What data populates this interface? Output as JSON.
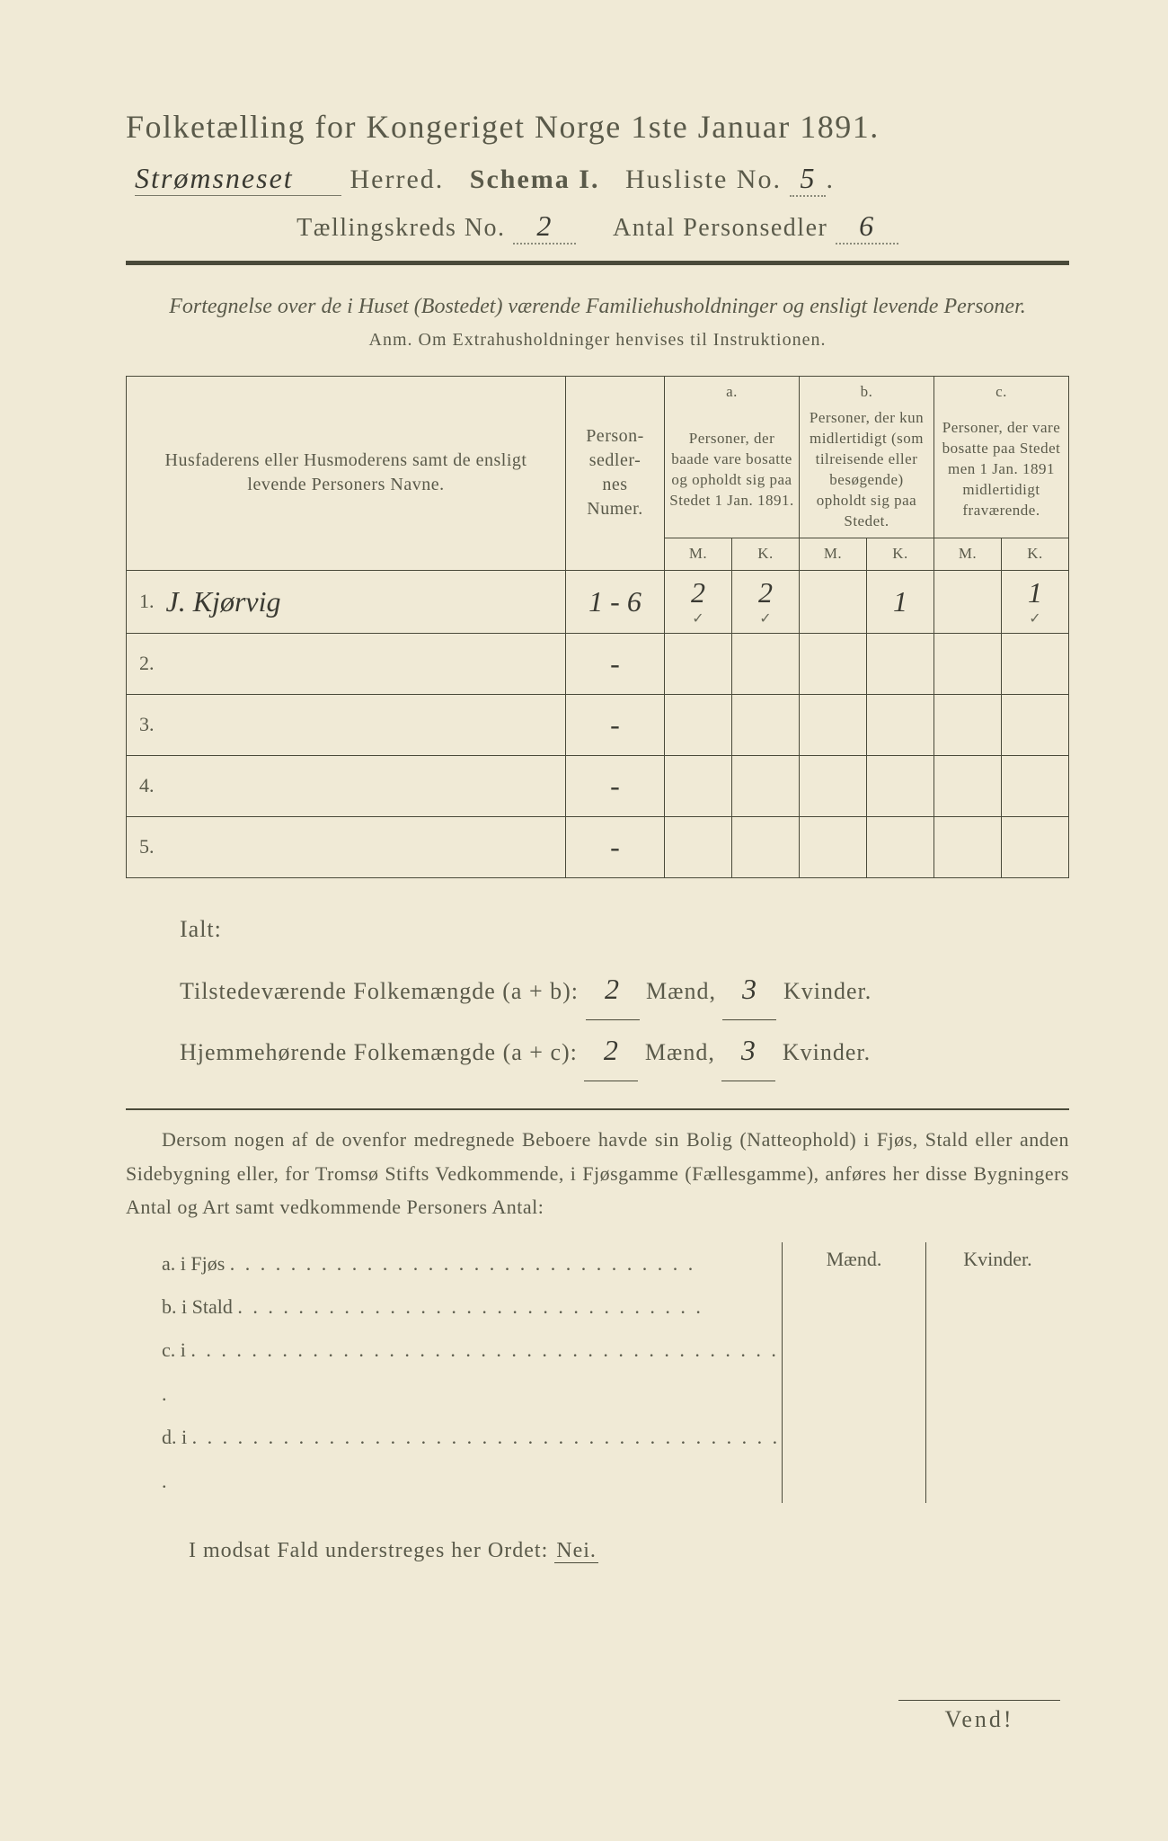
{
  "colors": {
    "paper": "#f0ead6",
    "ink": "#5a5a4a",
    "rule": "#4a4a3a",
    "handwriting": "#3a3a32",
    "background": "#2a2a2a"
  },
  "title": "Folketælling for Kongeriget Norge 1ste Januar 1891.",
  "line2": {
    "herred_hw": "Strømsneset",
    "herred_label": "Herred.",
    "schema_label": "Schema I.",
    "husliste_label": "Husliste No.",
    "husliste_no": "5"
  },
  "line3": {
    "kreds_label": "Tællingskreds No.",
    "kreds_no": "2",
    "antal_label": "Antal Personsedler",
    "antal_no": "6"
  },
  "subtitle": "Fortegnelse over de i Huset (Bostedet) værende Familiehusholdninger og ensligt levende Personer.",
  "anm": "Anm.  Om Extrahusholdninger henvises til Instruktionen.",
  "table": {
    "col1_header": "Husfaderens eller Husmoderens samt de ensligt levende Personers Navne.",
    "col2_header": "Person-sedler-nes Numer.",
    "group_a_letter": "a.",
    "group_a_header": "Personer, der baade vare bosatte og opholdt sig paa Stedet 1 Jan. 1891.",
    "group_b_letter": "b.",
    "group_b_header": "Personer, der kun midlertidigt (som tilreisende eller besøgende) opholdt sig paa Stedet.",
    "group_c_letter": "c.",
    "group_c_header": "Personer, der vare bosatte paa Stedet men 1 Jan. 1891 midlertidigt fraværende.",
    "m_label": "M.",
    "k_label": "K.",
    "rows": [
      {
        "n": "1.",
        "name_hw": "J. Kjørvig",
        "sedler": "1 - 6",
        "a_m": "2",
        "a_k": "2",
        "b_m": "",
        "b_k": "1",
        "c_m": "",
        "c_k": "1",
        "checks": true
      },
      {
        "n": "2.",
        "name_hw": "",
        "sedler": "-",
        "a_m": "",
        "a_k": "",
        "b_m": "",
        "b_k": "",
        "c_m": "",
        "c_k": ""
      },
      {
        "n": "3.",
        "name_hw": "",
        "sedler": "-",
        "a_m": "",
        "a_k": "",
        "b_m": "",
        "b_k": "",
        "c_m": "",
        "c_k": ""
      },
      {
        "n": "4.",
        "name_hw": "",
        "sedler": "-",
        "a_m": "",
        "a_k": "",
        "b_m": "",
        "b_k": "",
        "c_m": "",
        "c_k": ""
      },
      {
        "n": "5.",
        "name_hw": "",
        "sedler": "-",
        "a_m": "",
        "a_k": "",
        "b_m": "",
        "b_k": "",
        "c_m": "",
        "c_k": ""
      }
    ]
  },
  "ialt": {
    "label": "Ialt:",
    "line1_a": "Tilstedeværende Folkemængde (a + b):",
    "line2_a": "Hjemmehørende Folkemængde (a + c):",
    "maend_label": "Mænd,",
    "kvinder_label": "Kvinder.",
    "tilstede_m": "2",
    "tilstede_k": "3",
    "hjemme_m": "2",
    "hjemme_k": "3"
  },
  "para": "Dersom nogen af de ovenfor medregnede Beboere havde sin Bolig (Natteophold) i Fjøs, Stald eller anden Sidebygning eller, for Tromsø Stifts Vedkommende, i Fjøsgamme (Fællesgamme), anføres her disse Bygningers Antal og Art samt vedkommende Personers Antal:",
  "lower": {
    "maend": "Mænd.",
    "kvinder": "Kvinder.",
    "rows": [
      {
        "label": "a.  i      Fjøs",
        "dots": ". . . . . . . . . . . . .   . . . . . . . . . . . . . . . . . ."
      },
      {
        "label": "b.  i      Stald",
        "dots": " . . . . . . . . . . . . . . . . . . . . . . . . . . .  . . . ."
      },
      {
        "label": "c.  i",
        "dots": ". . . . . . . . . . . . . . . . . . . . . . . . . . . . . . . . . . . . . . . ."
      },
      {
        "label": "d.  i",
        "dots": ". . . . . . . . . . . . . . . . . . . . . . . . . . . . . . . . . . . . . . . ."
      }
    ]
  },
  "nei_line": "I modsat Fald understreges her Ordet:",
  "nei_word": "Nei.",
  "vend": "Vend!"
}
